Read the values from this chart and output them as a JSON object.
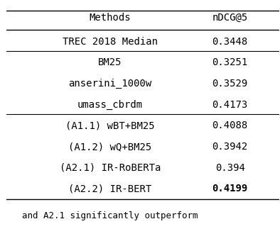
{
  "col_headers": [
    "Methods",
    "nDCG@5"
  ],
  "rows": [
    {
      "method": "TREC 2018 Median",
      "value": "0.3448",
      "bold_value": false,
      "group": 0
    },
    {
      "method": "BM25",
      "value": "0.3251",
      "bold_value": false,
      "group": 1
    },
    {
      "method": "anserini_1000w",
      "value": "0.3529",
      "bold_value": false,
      "group": 1
    },
    {
      "method": "umass_cbrdm",
      "value": "0.4173",
      "bold_value": false,
      "group": 1
    },
    {
      "method": "(A1.1) wBT+BM25",
      "value": "0.4088",
      "bold_value": false,
      "group": 2
    },
    {
      "method": "(A1.2) wQ+BM25",
      "value": "0.3942",
      "bold_value": false,
      "group": 2
    },
    {
      "method": "(A2.1) IR-RoBERTa",
      "value": "0.394",
      "bold_value": false,
      "group": 2
    },
    {
      "method": "(A2.2) IR-BERT",
      "value": "0.4199",
      "bold_value": true,
      "group": 2
    }
  ],
  "font_family": "monospace",
  "fontsize": 10,
  "header_fontsize": 10,
  "bg_color": "#ffffff",
  "text_color": "#000000",
  "line_color": "#000000",
  "note_text": "and A2.1 significantly outperform"
}
